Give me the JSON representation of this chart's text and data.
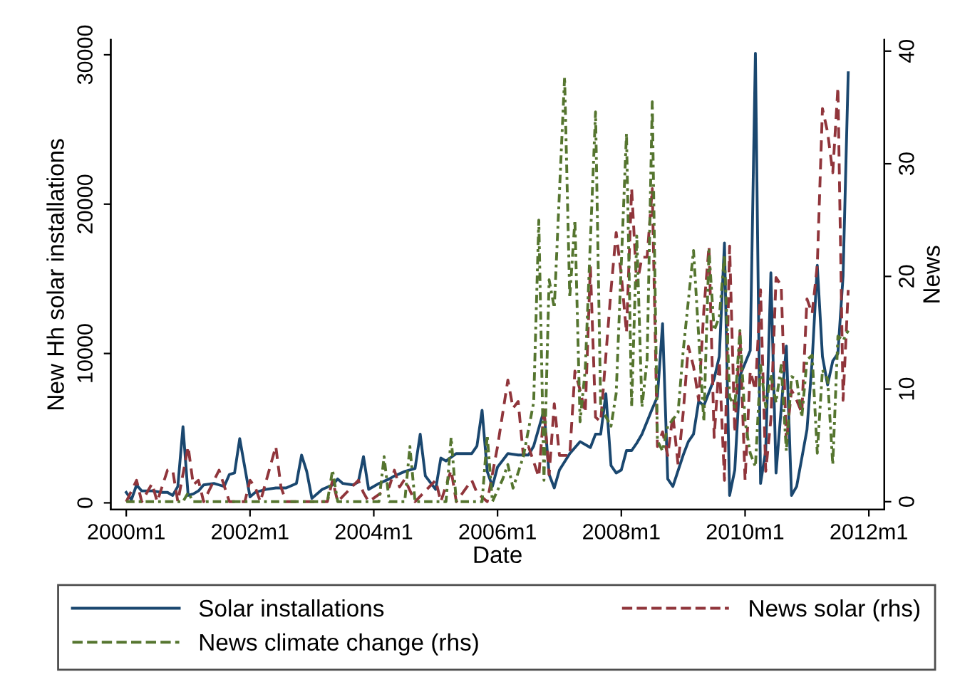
{
  "chart_data": {
    "type": "line",
    "xlabel": "Date",
    "ylabel": "New Hh solar installations",
    "y2label": "News",
    "xlim": [
      "1999-10",
      "2012-04"
    ],
    "xticks": [
      {
        "value": "2000-01",
        "label": "2000m1"
      },
      {
        "value": "2002-01",
        "label": "2002m1"
      },
      {
        "value": "2004-01",
        "label": "2004m1"
      },
      {
        "value": "2006-01",
        "label": "2006m1"
      },
      {
        "value": "2008-01",
        "label": "2008m1"
      },
      {
        "value": "2010-01",
        "label": "2010m1"
      },
      {
        "value": "2012-01",
        "label": "2012m1"
      }
    ],
    "ylim": [
      -450,
      31000
    ],
    "yticks": [
      0,
      10000,
      20000,
      30000
    ],
    "y2lim": [
      -0.7,
      41
    ],
    "y2ticks": [
      0,
      10,
      20,
      30,
      40
    ],
    "grid": false,
    "legend": "bottom",
    "marker": "none",
    "series": [
      {
        "name": "Solar installations",
        "color": "#1a476f",
        "line_style": "solid",
        "x": [
          "2000-01",
          "2000-02",
          "2000-03",
          "2000-04",
          "2000-06",
          "2000-08",
          "2000-09",
          "2000-10",
          "2000-11",
          "2000-12",
          "2001-01",
          "2001-02",
          "2001-03",
          "2001-04",
          "2001-06",
          "2001-07",
          "2001-08",
          "2001-09",
          "2001-10",
          "2001-11",
          "2002-01",
          "2002-02",
          "2002-04",
          "2002-06",
          "2002-08",
          "2002-10",
          "2002-11",
          "2002-12",
          "2003-01",
          "2003-03",
          "2003-05",
          "2003-06",
          "2003-07",
          "2003-09",
          "2003-10",
          "2003-11",
          "2003-12",
          "2004-02",
          "2004-04",
          "2004-05",
          "2004-07",
          "2004-09",
          "2004-10",
          "2004-11",
          "2005-01",
          "2005-02",
          "2005-03",
          "2005-05",
          "2005-08",
          "2005-09",
          "2005-10",
          "2005-11",
          "2005-12",
          "2006-01",
          "2006-03",
          "2006-05",
          "2006-07",
          "2006-08",
          "2006-10",
          "2006-11",
          "2006-12",
          "2007-01",
          "2007-03",
          "2007-05",
          "2007-07",
          "2007-08",
          "2007-09",
          "2007-10",
          "2007-11",
          "2007-12",
          "2008-01",
          "2008-02",
          "2008-03",
          "2008-04",
          "2008-05",
          "2008-07",
          "2008-08",
          "2008-09",
          "2008-10",
          "2008-11",
          "2009-01",
          "2009-02",
          "2009-03",
          "2009-04",
          "2009-05",
          "2009-07",
          "2009-08",
          "2009-09",
          "2009-10",
          "2009-11",
          "2009-12",
          "2010-02",
          "2010-03",
          "2010-04",
          "2010-05",
          "2010-06",
          "2010-07",
          "2010-08",
          "2010-09",
          "2010-10",
          "2010-11",
          "2011-01",
          "2011-02",
          "2011-03",
          "2011-04",
          "2011-05",
          "2011-06",
          "2011-07",
          "2011-08",
          "2011-09"
        ],
        "values": [
          700,
          200,
          1200,
          800,
          800,
          700,
          700,
          500,
          1100,
          5100,
          500,
          600,
          800,
          1200,
          1300,
          1200,
          1100,
          1900,
          2000,
          4300,
          400,
          700,
          900,
          1000,
          1000,
          1300,
          3200,
          2100,
          300,
          900,
          1200,
          1600,
          1300,
          1200,
          1400,
          3100,
          900,
          1300,
          1600,
          1800,
          2100,
          2300,
          4600,
          1800,
          900,
          3000,
          2800,
          3300,
          3300,
          3800,
          6200,
          2100,
          1100,
          2400,
          3300,
          3200,
          3200,
          3800,
          6200,
          1900,
          1000,
          2200,
          3300,
          4100,
          3700,
          4600,
          4600,
          7300,
          2500,
          2000,
          2200,
          3500,
          3500,
          4000,
          4600,
          6300,
          7100,
          12000,
          1600,
          1100,
          3200,
          4100,
          4600,
          6800,
          6500,
          8300,
          9800,
          17400,
          500,
          2200,
          8500,
          10200,
          30100,
          1300,
          3500,
          15400,
          2000,
          6300,
          10500,
          500,
          1100,
          4900,
          9500,
          15900,
          9800,
          7900,
          9500,
          10000,
          15200,
          28800
        ]
      },
      {
        "name": "News solar (rhs)",
        "color": "#90353b",
        "line_style": "dashed",
        "axis": "y2",
        "x": [
          "2000-01",
          "2000-03",
          "2000-04",
          "2000-06",
          "2000-07",
          "2000-09",
          "2000-10",
          "2000-11",
          "2001-01",
          "2001-02",
          "2001-03",
          "2001-04",
          "2001-07",
          "2001-08",
          "2001-09",
          "2001-12",
          "2002-01",
          "2002-02",
          "2002-03",
          "2002-06",
          "2002-07",
          "2002-08",
          "2003-04",
          "2003-05",
          "2003-06",
          "2003-10",
          "2003-11",
          "2003-12",
          "2004-04",
          "2004-05",
          "2004-06",
          "2004-07",
          "2004-09",
          "2005-01",
          "2005-02",
          "2005-04",
          "2005-05",
          "2005-08",
          "2005-09",
          "2005-11",
          "2006-01",
          "2006-03",
          "2006-04",
          "2006-05",
          "2006-06",
          "2006-07",
          "2006-09",
          "2006-10",
          "2006-11",
          "2006-12",
          "2007-01",
          "2007-03",
          "2007-04",
          "2007-05",
          "2007-06",
          "2007-07",
          "2007-08",
          "2007-09",
          "2007-11",
          "2007-12",
          "2008-01",
          "2008-02",
          "2008-03",
          "2008-04",
          "2008-05",
          "2008-06",
          "2008-07",
          "2008-08",
          "2008-09",
          "2008-10",
          "2008-11",
          "2008-12",
          "2009-01",
          "2009-02",
          "2009-03",
          "2009-04",
          "2009-05",
          "2009-06",
          "2009-07",
          "2009-08",
          "2009-09",
          "2009-10",
          "2009-11",
          "2009-12",
          "2010-01",
          "2010-02",
          "2010-03",
          "2010-04",
          "2010-05",
          "2010-06",
          "2010-07",
          "2010-08",
          "2010-09",
          "2010-10",
          "2010-11",
          "2010-12",
          "2011-01",
          "2011-02",
          "2011-03",
          "2011-04",
          "2011-05",
          "2011-06",
          "2011-07",
          "2011-08",
          "2011-09"
        ],
        "values": [
          0,
          1.9,
          0,
          1.6,
          0,
          2.8,
          2.8,
          0,
          4.9,
          1.5,
          1.9,
          0,
          2.8,
          1.4,
          0,
          0,
          1.9,
          1.3,
          0,
          4.9,
          1.3,
          0,
          0,
          1.9,
          0,
          1.9,
          0.8,
          0,
          1.3,
          2.8,
          1.3,
          2,
          0,
          1.9,
          0,
          2.8,
          0,
          1.9,
          0.8,
          0,
          4.9,
          10.8,
          8.3,
          8.9,
          4.1,
          4.9,
          2.2,
          8.3,
          2.4,
          8.7,
          4.1,
          4.1,
          11.6,
          9.9,
          7.9,
          20.9,
          7.5,
          7.1,
          18.8,
          23.9,
          20.1,
          15,
          27.8,
          19.2,
          21.7,
          21.7,
          27.8,
          4.9,
          6.2,
          4.1,
          7.7,
          3.3,
          7.9,
          13.8,
          12,
          9,
          17,
          22.7,
          5.7,
          12.5,
          1.9,
          22.7,
          6.1,
          15,
          1.9,
          11.6,
          9.9,
          18.8,
          2.7,
          7.3,
          19.9,
          19.2,
          5.3,
          9.9,
          9,
          7.9,
          18,
          16.7,
          21,
          34.9,
          32.8,
          29.2,
          36.8,
          9,
          18.8
        ]
      },
      {
        "name": "News climate change (rhs)",
        "color": "#55752f",
        "line_style": "dashdot",
        "axis": "y2",
        "x": [
          "2000-01",
          "2000-12",
          "2001-01",
          "2001-02",
          "2003-04",
          "2003-05",
          "2003-06",
          "2004-02",
          "2004-03",
          "2004-04",
          "2004-07",
          "2004-08",
          "2004-09",
          "2005-03",
          "2005-04",
          "2005-05",
          "2005-10",
          "2005-11",
          "2005-12",
          "2006-02",
          "2006-03",
          "2006-04",
          "2006-06",
          "2006-08",
          "2006-09",
          "2006-10",
          "2006-11",
          "2006-12",
          "2007-02",
          "2007-03",
          "2007-04",
          "2007-05",
          "2007-06",
          "2007-08",
          "2007-09",
          "2007-11",
          "2007-12",
          "2008-02",
          "2008-03",
          "2008-04",
          "2008-05",
          "2008-06",
          "2008-07",
          "2008-08",
          "2008-09",
          "2008-10",
          "2008-12",
          "2009-01",
          "2009-03",
          "2009-04",
          "2009-05",
          "2009-06",
          "2009-07",
          "2009-08",
          "2009-09",
          "2009-10",
          "2009-11",
          "2009-12",
          "2010-01",
          "2010-02",
          "2010-03",
          "2010-04",
          "2010-05",
          "2010-06",
          "2010-07",
          "2010-08",
          "2010-09",
          "2010-10",
          "2010-11",
          "2010-12",
          "2011-01",
          "2011-02",
          "2011-03",
          "2011-04",
          "2011-05",
          "2011-06",
          "2011-07",
          "2011-08",
          "2011-09"
        ],
        "values": [
          0,
          0,
          0.8,
          0,
          0,
          2.8,
          0,
          0,
          4,
          0,
          0,
          4.9,
          0,
          0,
          5.7,
          0,
          0,
          5.9,
          0,
          2,
          3.3,
          1.2,
          4,
          8.8,
          25,
          1.9,
          19.7,
          17.2,
          37.7,
          18.1,
          25,
          7.1,
          11.7,
          34.6,
          8.4,
          6.7,
          9.6,
          32.7,
          8.4,
          23.6,
          8.4,
          12.6,
          35.5,
          5.4,
          4.5,
          6.7,
          7.9,
          13.4,
          22.3,
          14.7,
          7.1,
          22.3,
          15.2,
          16.4,
          21.9,
          9.3,
          8.4,
          15.2,
          7.1,
          4.3,
          3.1,
          12.1,
          8.4,
          11.3,
          8.8,
          12.1,
          4.5,
          11.1,
          10.9,
          7.5,
          12.6,
          13,
          4.3,
          11.7,
          10.9,
          3.3,
          14.7,
          14.3,
          15.2
        ]
      }
    ]
  }
}
